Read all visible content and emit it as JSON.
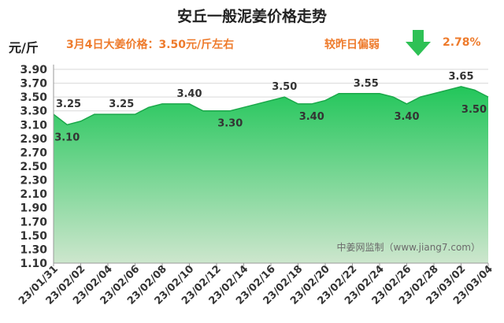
{
  "header": {
    "title": "安丘一般泥姜价格走势",
    "unit": "元/斤",
    "headline": "3月4日大姜价格：3.50元/斤左右",
    "change_label": "较昨日偏弱",
    "change_value": "2.78%",
    "change_direction_icon": "down-arrow-icon"
  },
  "colors": {
    "area_top": "#22c65a",
    "area_bottom": "#cde6cd",
    "line": "#1ba84a",
    "accent": "#ee7b2c",
    "arrow": "#2ec155"
  },
  "chart_data": {
    "type": "area",
    "title": "安丘一般泥姜价格走势",
    "ylabel": "元/斤",
    "xlabel": "",
    "ylim": [
      1.1,
      3.9
    ],
    "yticks": [
      "1.10",
      "1.30",
      "1.50",
      "1.70",
      "1.90",
      "2.10",
      "2.30",
      "2.50",
      "2.70",
      "2.90",
      "3.10",
      "3.30",
      "3.50",
      "3.70",
      "3.90"
    ],
    "xticks": [
      "23/01/31",
      "23/02/02",
      "23/02/04",
      "23/02/06",
      "23/02/08",
      "23/02/10",
      "23/02/12",
      "23/02/14",
      "23/02/16",
      "23/02/18",
      "23/02/20",
      "23/02/22",
      "23/02/24",
      "23/02/26",
      "23/02/28",
      "23/03/02",
      "23/03/04"
    ],
    "values": [
      3.25,
      3.1,
      3.15,
      3.25,
      3.25,
      3.25,
      3.25,
      3.35,
      3.4,
      3.4,
      3.4,
      3.3,
      3.3,
      3.3,
      3.35,
      3.4,
      3.45,
      3.5,
      3.4,
      3.4,
      3.45,
      3.55,
      3.55,
      3.55,
      3.55,
      3.5,
      3.4,
      3.5,
      3.55,
      3.6,
      3.65,
      3.6,
      3.5
    ],
    "data_labels": [
      {
        "index": 0,
        "text": "3.25",
        "pos": "above"
      },
      {
        "index": 1,
        "text": "3.10",
        "pos": "below"
      },
      {
        "index": 5,
        "text": "3.25",
        "pos": "above"
      },
      {
        "index": 10,
        "text": "3.40",
        "pos": "above"
      },
      {
        "index": 13,
        "text": "3.30",
        "pos": "below"
      },
      {
        "index": 17,
        "text": "3.50",
        "pos": "above"
      },
      {
        "index": 19,
        "text": "3.40",
        "pos": "below"
      },
      {
        "index": 23,
        "text": "3.55",
        "pos": "above"
      },
      {
        "index": 26,
        "text": "3.40",
        "pos": "below"
      },
      {
        "index": 30,
        "text": "3.65",
        "pos": "above"
      },
      {
        "index": 32,
        "text": "3.50",
        "pos": "below"
      }
    ],
    "watermark": "中姜网监制（www.jiang7.com）"
  }
}
